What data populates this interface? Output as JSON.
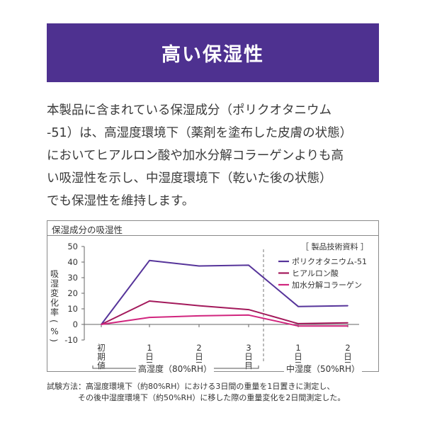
{
  "banner": {
    "title": "高い保湿性"
  },
  "description": [
    "本製品に含まれている保湿成分（ポリクオタニウム",
    "-51）は、高湿度環境下（薬剤を塗布した皮膚の状態）",
    "においてヒアルロン酸や加水分解コラーゲンよりも高",
    "い吸湿性を示し、中湿度環境下（乾いた後の状態）",
    "でも保湿性を維持します。"
  ],
  "panel": {
    "title": "保湿成分の吸湿性",
    "source": "［ 製品技術資料 ］"
  },
  "colors": {
    "banner": "#4e3190",
    "poly": "#56349a",
    "hyaluronic": "#a3195b",
    "collagen": "#d1257e"
  },
  "chart_data": {
    "type": "line",
    "ylabel": "吸湿変化率（%）",
    "ylim": [
      -10,
      50
    ],
    "yticks": [
      "50",
      "40",
      "30",
      "20",
      "10",
      "0",
      "-10"
    ],
    "categories": [
      "初期値",
      "1日目",
      "2日目",
      "3日目",
      "1日目",
      "2日目"
    ],
    "category_labels": [
      [
        "初",
        "期",
        "値"
      ],
      [
        "1",
        "日",
        "目"
      ],
      [
        "2",
        "日",
        "目"
      ],
      [
        "3",
        "日",
        "目"
      ],
      [
        "1",
        "日",
        "目"
      ],
      [
        "2",
        "日",
        "目"
      ]
    ],
    "groups": [
      {
        "label": "高湿度（80%RH）",
        "from": 0,
        "to": 3
      },
      {
        "label": "中湿度（50%RH）",
        "from": 4,
        "to": 5
      }
    ],
    "series": [
      {
        "name": "ポリクオタニウム-51",
        "color": "#56349a",
        "values": [
          0,
          41,
          37.5,
          38,
          11.5,
          12
        ]
      },
      {
        "name": "ヒアルロン酸",
        "color": "#a3195b",
        "values": [
          0,
          15,
          12,
          9.5,
          0.5,
          1
        ]
      },
      {
        "name": "加水分解コラーゲン",
        "color": "#d1257e",
        "values": [
          0,
          4.5,
          5.5,
          6,
          -1,
          -1
        ]
      }
    ],
    "legend": "top-right",
    "grid": false
  },
  "notes": [
    "試験方法：高湿度環境下（約80%RH）における3日間の重量を1日置きに測定し、",
    "　　　　その後中湿度環境下（約50%RH）に移した際の重量変化を2日間測定した。"
  ]
}
